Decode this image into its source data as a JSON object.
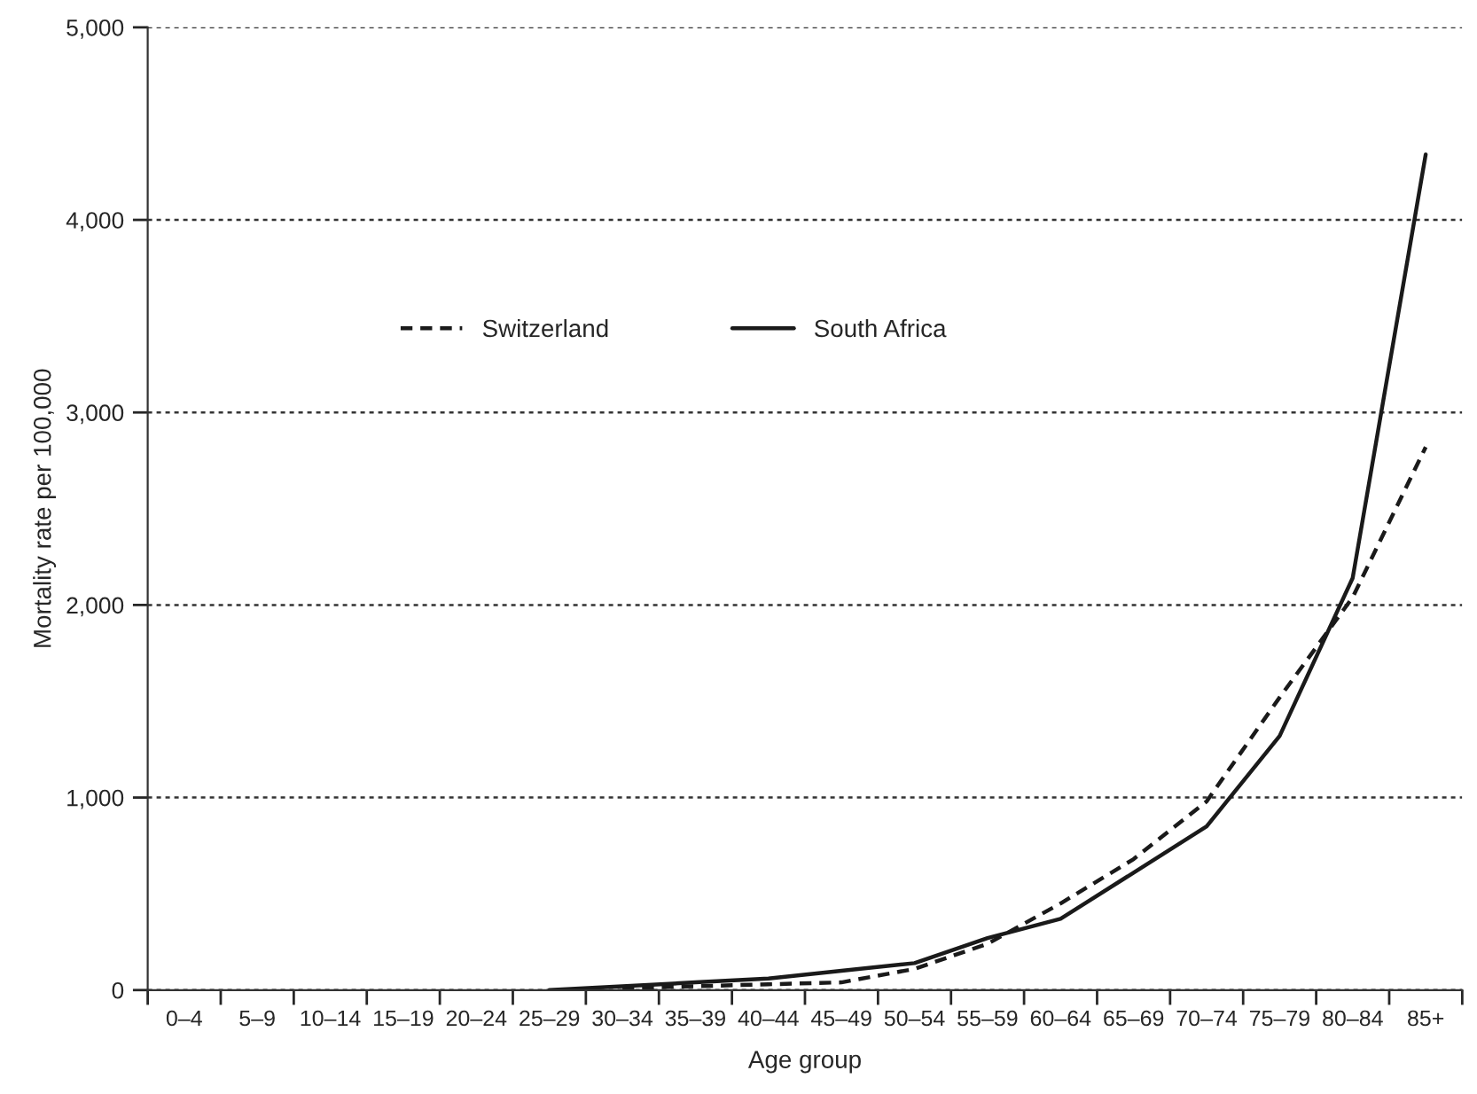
{
  "chart_data": {
    "type": "line",
    "xlabel": "Age group",
    "ylabel": "Mortality rate per 100,000",
    "categories": [
      "0–4",
      "5–9",
      "10–14",
      "15–19",
      "20–24",
      "25–29",
      "30–34",
      "35–39",
      "40–44",
      "45–49",
      "50–54",
      "55–59",
      "60–64",
      "65–69",
      "70–74",
      "75–79",
      "80–84",
      "85+"
    ],
    "series": [
      {
        "name": "Switzerland",
        "color": "#1a1a1a",
        "line_style": "dashed",
        "values": [
          null,
          null,
          null,
          null,
          null,
          null,
          10,
          20,
          30,
          40,
          110,
          240,
          450,
          680,
          980,
          1520,
          2040,
          2820
        ]
      },
      {
        "name": "South Africa",
        "color": "#1a1a1a",
        "line_style": "solid",
        "values": [
          null,
          null,
          null,
          null,
          null,
          0,
          20,
          40,
          60,
          100,
          140,
          270,
          370,
          610,
          850,
          1320,
          2140,
          4340
        ]
      }
    ],
    "ylim": [
      0,
      5000
    ],
    "yticks": [
      {
        "value": 0,
        "label": "0"
      },
      {
        "value": 1000,
        "label": "1,000"
      },
      {
        "value": 2000,
        "label": "2,000"
      },
      {
        "value": 3000,
        "label": "3,000"
      },
      {
        "value": 4000,
        "label": "4,000"
      },
      {
        "value": 5000,
        "label": "5,000"
      }
    ],
    "grid": "y",
    "legend": "top",
    "marker": "none"
  }
}
